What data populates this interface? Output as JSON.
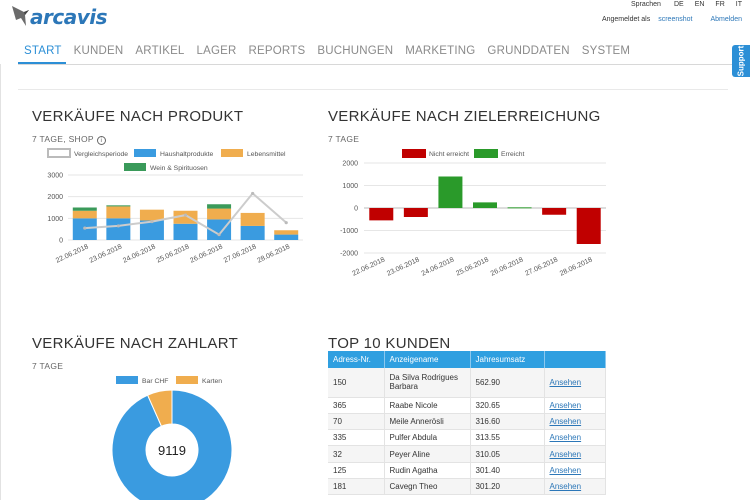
{
  "app": {
    "logo_text": "arcavis",
    "lang_label": "Sprachen",
    "languages": [
      "DE",
      "EN",
      "FR",
      "IT"
    ],
    "logged_in_label": "Angemeldet als",
    "user_name": "screenshot",
    "logout": "Abmelden",
    "support": "Support",
    "accent": "#2c8fd6"
  },
  "nav": {
    "items": [
      "START",
      "KUNDEN",
      "ARTIKEL",
      "LAGER",
      "REPORTS",
      "BUCHUNGEN",
      "MARKETING",
      "GRUNDDATEN",
      "SYSTEM"
    ],
    "active": "START"
  },
  "panels": {
    "produkt": {
      "title": "VERKÄUFE NACH PRODUKT",
      "subtitle": "7 TAGE, SHOP"
    },
    "ziel": {
      "title": "VERKÄUFE NACH ZIELERREICHUNG",
      "subtitle": "7 TAGE"
    },
    "zahlart": {
      "title": "VERKÄUFE NACH ZAHLART",
      "subtitle": "7 TAGE"
    },
    "kunden": {
      "title": "TOP 10 KUNDEN"
    }
  },
  "chart_data": [
    {
      "type": "bar",
      "stacked": true,
      "categories": [
        "22.06.2018",
        "23.06.2018",
        "24.06.2018",
        "25.06.2018",
        "26.06.2018",
        "27.06.2018",
        "28.06.2018"
      ],
      "series": [
        {
          "name": "Haushaltprodukte",
          "color": "#3a9be0",
          "values": [
            1000,
            1000,
            900,
            750,
            950,
            650,
            250
          ]
        },
        {
          "name": "Lebensmittel",
          "color": "#f0ad4e",
          "values": [
            350,
            550,
            500,
            600,
            500,
            600,
            200
          ]
        },
        {
          "name": "Wein & Spirituosen",
          "color": "#3a9a5a",
          "values": [
            150,
            50,
            0,
            0,
            200,
            0,
            0
          ]
        }
      ],
      "line": {
        "name": "Vergleichsperiode",
        "color": "#cccccc",
        "values": [
          550,
          650,
          850,
          1150,
          250,
          2150,
          800
        ]
      },
      "ylim": [
        0,
        3000
      ],
      "yticks": [
        0,
        1000,
        2000,
        3000
      ]
    },
    {
      "type": "bar",
      "categories": [
        "22.06.2018",
        "23.06.2018",
        "24.06.2018",
        "25.06.2018",
        "26.06.2018",
        "27.06.2018",
        "28.06.2018"
      ],
      "values": [
        -550,
        -400,
        1400,
        250,
        30,
        -300,
        -1600
      ],
      "series": [
        {
          "name": "Nicht erreicht",
          "color": "#c00000"
        },
        {
          "name": "Erreicht",
          "color": "#2a9a2a"
        }
      ],
      "ylim": [
        -2000,
        2000
      ],
      "yticks": [
        2000,
        1000,
        0,
        -1000,
        -2000
      ]
    },
    {
      "type": "pie",
      "donut": true,
      "center_label": "9119",
      "labels": [
        "Bar CHF",
        "Karten"
      ],
      "colors": [
        "#3a9be0",
        "#f0ad4e"
      ],
      "values": [
        8512,
        607
      ]
    }
  ],
  "customers": {
    "headers": [
      "Adress-Nr.",
      "Anzeigename",
      "Jahresumsatz",
      ""
    ],
    "rows": [
      {
        "nr": "150",
        "name": "Da Silva Rodrigues Barbara",
        "umsatz": "562.90",
        "action": "Ansehen"
      },
      {
        "nr": "365",
        "name": "Raabe Nicole",
        "umsatz": "320.65",
        "action": "Ansehen"
      },
      {
        "nr": "70",
        "name": "Meile Annerösli",
        "umsatz": "316.60",
        "action": "Ansehen"
      },
      {
        "nr": "335",
        "name": "Pulfer Abdula",
        "umsatz": "313.55",
        "action": "Ansehen"
      },
      {
        "nr": "32",
        "name": "Peyer Aline",
        "umsatz": "310.05",
        "action": "Ansehen"
      },
      {
        "nr": "125",
        "name": "Rudin Agatha",
        "umsatz": "301.40",
        "action": "Ansehen"
      },
      {
        "nr": "181",
        "name": "Cavegn Theo",
        "umsatz": "301.20",
        "action": "Ansehen"
      }
    ]
  }
}
